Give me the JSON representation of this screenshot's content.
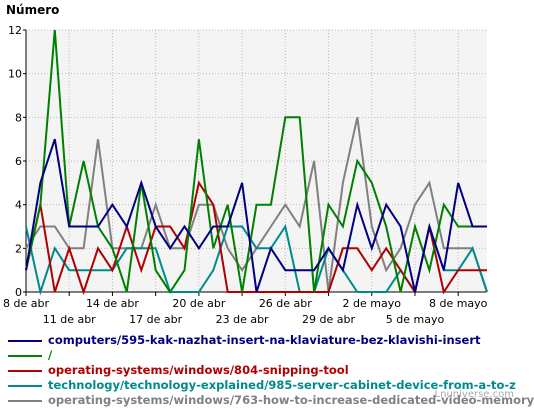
{
  "chart_data": {
    "type": "line",
    "ylabel": "Número",
    "ylim": [
      0,
      12
    ],
    "yticks": [
      0,
      2,
      4,
      6,
      8,
      10,
      12
    ],
    "grid": true,
    "x": [
      "8 de abr",
      "9 de abr",
      "10 de abr",
      "11 de abr",
      "12 de abr",
      "13 de abr",
      "14 de abr",
      "15 de abr",
      "16 de abr",
      "17 de abr",
      "18 de abr",
      "19 de abr",
      "20 de abr",
      "21 de abr",
      "22 de abr",
      "23 de abr",
      "24 de abr",
      "25 de abr",
      "26 de abr",
      "27 de abr",
      "28 de abr",
      "29 de abr",
      "30 de abr",
      "1 de mayo",
      "2 de mayo",
      "3 de mayo",
      "4 de mayo",
      "5 de mayo",
      "6 de mayo",
      "7 de mayo",
      "8 de mayo",
      "9 de mayo",
      "10 de mayo"
    ],
    "xticks_top": [
      {
        "i": 0,
        "label": "8 de abr"
      },
      {
        "i": 6,
        "label": "14 de abr"
      },
      {
        "i": 12,
        "label": "20 de abr"
      },
      {
        "i": 18,
        "label": "26 de abr"
      },
      {
        "i": 24,
        "label": "2 de mayo"
      },
      {
        "i": 30,
        "label": "8 de mayo"
      }
    ],
    "xticks_bottom": [
      {
        "i": 3,
        "label": "11 de abr"
      },
      {
        "i": 9,
        "label": "17 de abr"
      },
      {
        "i": 15,
        "label": "23 de abr"
      },
      {
        "i": 21,
        "label": "29 de abr"
      },
      {
        "i": 27,
        "label": "5 de mayo"
      }
    ],
    "series": [
      {
        "name": "computers/595-kak-nazhat-insert-na-klaviature-bez-klavishi-insert",
        "color": "#000080",
        "values": [
          1,
          5,
          7,
          3,
          3,
          3,
          4,
          3,
          5,
          3,
          2,
          3,
          2,
          3,
          3,
          5,
          0,
          2,
          1,
          1,
          1,
          2,
          1,
          4,
          2,
          4,
          3,
          0,
          3,
          1,
          5,
          3,
          3
        ]
      },
      {
        "name": "/",
        "color": "#008000",
        "values": [
          1,
          4,
          12,
          3,
          6,
          3,
          2,
          0,
          5,
          1,
          0,
          1,
          7,
          2,
          4,
          0,
          4,
          4,
          8,
          8,
          0,
          4,
          3,
          6,
          5,
          3,
          0,
          3,
          1,
          4,
          3,
          3,
          3
        ]
      },
      {
        "name": "operating-systems/windows/804-snipping-tool",
        "color": "#b00000",
        "values": [
          1,
          4,
          0,
          2,
          0,
          2,
          1,
          3,
          1,
          3,
          3,
          2,
          5,
          4,
          0,
          0,
          0,
          0,
          0,
          0,
          0,
          0,
          2,
          2,
          1,
          2,
          1,
          0,
          3,
          0,
          1,
          1,
          1
        ]
      },
      {
        "name": "technology/technology-explained/985-server-cabinet-device-from-a-to-z",
        "color": "#008b8b",
        "values": [
          3,
          0,
          2,
          1,
          1,
          1,
          1,
          2,
          2,
          2,
          0,
          0,
          0,
          1,
          3,
          3,
          2,
          2,
          3,
          0,
          0,
          2,
          1,
          0,
          0,
          0,
          1,
          0,
          3,
          1,
          1,
          2,
          0
        ]
      },
      {
        "name": "operating-systems/windows/763-how-to-increase-dedicated-video-memory",
        "color": "#808080",
        "values": [
          2,
          3,
          3,
          2,
          2,
          7,
          2,
          2,
          2,
          4,
          2,
          2,
          4,
          4,
          2,
          1,
          2,
          3,
          4,
          3,
          6,
          0,
          5,
          8,
          3,
          1,
          2,
          4,
          5,
          2,
          2,
          2,
          0
        ]
      }
    ]
  },
  "watermark": "Lnuniverse.com"
}
